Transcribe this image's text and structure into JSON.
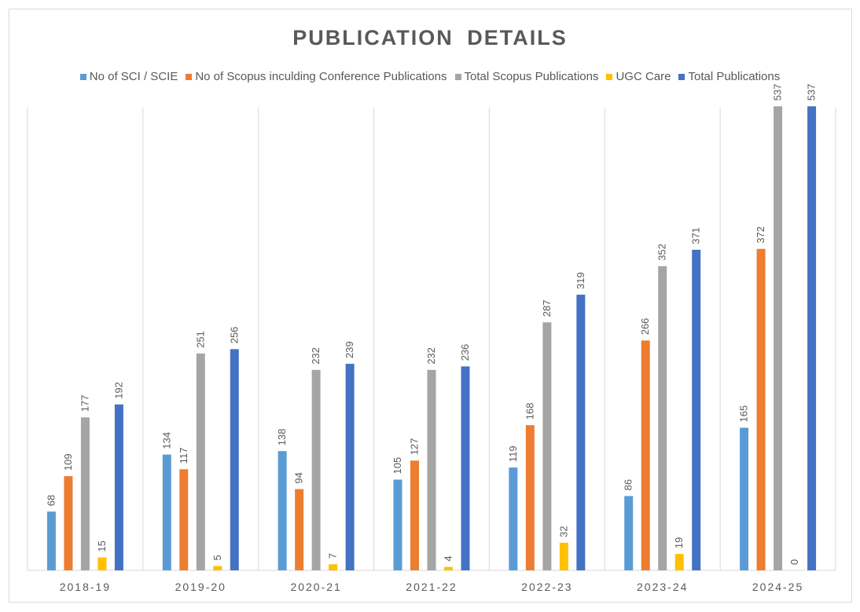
{
  "chart_data": {
    "type": "bar",
    "title": "PUBLICATION DETAILS",
    "xlabel": "",
    "ylabel": "",
    "ylim": [
      0,
      600
    ],
    "grid": "vertical category separators",
    "legend_position": "top",
    "categories": [
      "2018-19",
      "2019-20",
      "2020-21",
      "2021-22",
      "2022-23",
      "2023-24",
      "2024-25"
    ],
    "series": [
      {
        "name": "No of SCI / SCIE",
        "color": "#5b9bd5",
        "values": [
          68,
          134,
          138,
          105,
          119,
          86,
          165
        ]
      },
      {
        "name": "No of Scopus inculding Conference Publications",
        "color": "#ed7d31",
        "values": [
          109,
          117,
          94,
          127,
          168,
          266,
          372
        ]
      },
      {
        "name": "Total Scopus Publications",
        "color": "#a5a5a5",
        "values": [
          177,
          251,
          232,
          232,
          287,
          352,
          537
        ]
      },
      {
        "name": "UGC Care",
        "color": "#ffc000",
        "values": [
          15,
          5,
          7,
          4,
          32,
          19,
          0
        ]
      },
      {
        "name": "Total Publications",
        "color": "#4472c4",
        "values": [
          192,
          256,
          239,
          236,
          319,
          371,
          537
        ]
      }
    ]
  }
}
